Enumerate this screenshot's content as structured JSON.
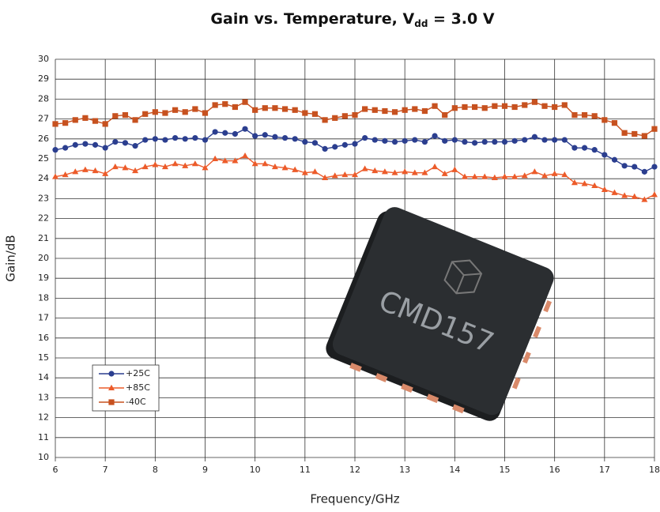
{
  "chart_data": {
    "type": "line",
    "title_parts": [
      "Gain vs. Temperature, V",
      "dd",
      " = 3.0 V"
    ],
    "x_label": "Frequency/GHz",
    "y_label": "Gain/dB",
    "x": [
      6.0,
      6.2,
      6.4,
      6.6,
      6.8,
      7.0,
      7.2,
      7.4,
      7.6,
      7.8,
      8.0,
      8.2,
      8.4,
      8.6,
      8.8,
      9.0,
      9.2,
      9.4,
      9.6,
      9.8,
      10.0,
      10.2,
      10.4,
      10.6,
      10.8,
      11.0,
      11.2,
      11.4,
      11.6,
      11.8,
      12.0,
      12.2,
      12.4,
      12.6,
      12.8,
      13.0,
      13.2,
      13.4,
      13.6,
      13.8,
      14.0,
      14.2,
      14.4,
      14.6,
      14.8,
      15.0,
      15.2,
      15.4,
      15.6,
      15.8,
      16.0,
      16.2,
      16.4,
      16.6,
      16.8,
      17.0,
      17.2,
      17.4,
      17.6,
      17.8,
      18.0
    ],
    "series": [
      {
        "name": "+25C",
        "color": "#2b3e8f",
        "marker": "circle",
        "values": [
          25.45,
          25.55,
          25.7,
          25.75,
          25.7,
          25.55,
          25.85,
          25.8,
          25.65,
          25.95,
          26.0,
          25.95,
          26.05,
          26.0,
          26.05,
          25.95,
          26.35,
          26.3,
          26.25,
          26.5,
          26.15,
          26.2,
          26.1,
          26.05,
          26.0,
          25.85,
          25.8,
          25.5,
          25.6,
          25.7,
          25.75,
          26.05,
          25.95,
          25.9,
          25.85,
          25.9,
          25.95,
          25.85,
          26.15,
          25.9,
          25.95,
          25.85,
          25.8,
          25.85,
          25.85,
          25.85,
          25.9,
          25.95,
          26.1,
          25.95,
          25.95,
          25.95,
          25.55,
          25.55,
          25.45,
          25.2,
          24.95,
          24.65,
          24.6,
          24.35,
          24.6
        ]
      },
      {
        "name": "+85C",
        "color": "#ec5b2a",
        "marker": "triangle",
        "values": [
          24.1,
          24.2,
          24.35,
          24.45,
          24.4,
          24.25,
          24.6,
          24.55,
          24.4,
          24.6,
          24.7,
          24.6,
          24.75,
          24.65,
          24.75,
          24.55,
          25.0,
          24.9,
          24.9,
          25.15,
          24.75,
          24.75,
          24.6,
          24.55,
          24.45,
          24.3,
          24.35,
          24.05,
          24.15,
          24.2,
          24.2,
          24.5,
          24.4,
          24.35,
          24.3,
          24.35,
          24.3,
          24.3,
          24.6,
          24.25,
          24.45,
          24.1,
          24.1,
          24.1,
          24.05,
          24.1,
          24.1,
          24.15,
          24.35,
          24.15,
          24.25,
          24.2,
          23.8,
          23.75,
          23.65,
          23.45,
          23.3,
          23.15,
          23.1,
          22.95,
          23.2
        ]
      },
      {
        "name": "-40C",
        "color": "#c7511f",
        "marker": "square",
        "values": [
          26.75,
          26.8,
          26.95,
          27.05,
          26.9,
          26.75,
          27.15,
          27.2,
          26.95,
          27.25,
          27.35,
          27.3,
          27.45,
          27.35,
          27.5,
          27.3,
          27.7,
          27.75,
          27.6,
          27.85,
          27.45,
          27.55,
          27.55,
          27.5,
          27.45,
          27.3,
          27.25,
          26.95,
          27.05,
          27.15,
          27.2,
          27.5,
          27.45,
          27.4,
          27.35,
          27.45,
          27.5,
          27.4,
          27.65,
          27.2,
          27.55,
          27.6,
          27.6,
          27.55,
          27.65,
          27.65,
          27.6,
          27.7,
          27.85,
          27.65,
          27.6,
          27.7,
          27.2,
          27.2,
          27.15,
          26.95,
          26.8,
          26.3,
          26.25,
          26.15,
          26.5
        ]
      }
    ],
    "xlim": [
      6,
      18
    ],
    "xticks": [
      6,
      7,
      8,
      9,
      10,
      11,
      12,
      13,
      14,
      15,
      16,
      17,
      18
    ],
    "ylim": [
      10,
      30
    ],
    "yticks": [
      10,
      11,
      12,
      13,
      14,
      15,
      16,
      17,
      18,
      19,
      20,
      21,
      22,
      23,
      24,
      25,
      26,
      27,
      28,
      29,
      30
    ],
    "grid": true,
    "legend": "lower left",
    "annotations": [
      "CMD157"
    ]
  }
}
